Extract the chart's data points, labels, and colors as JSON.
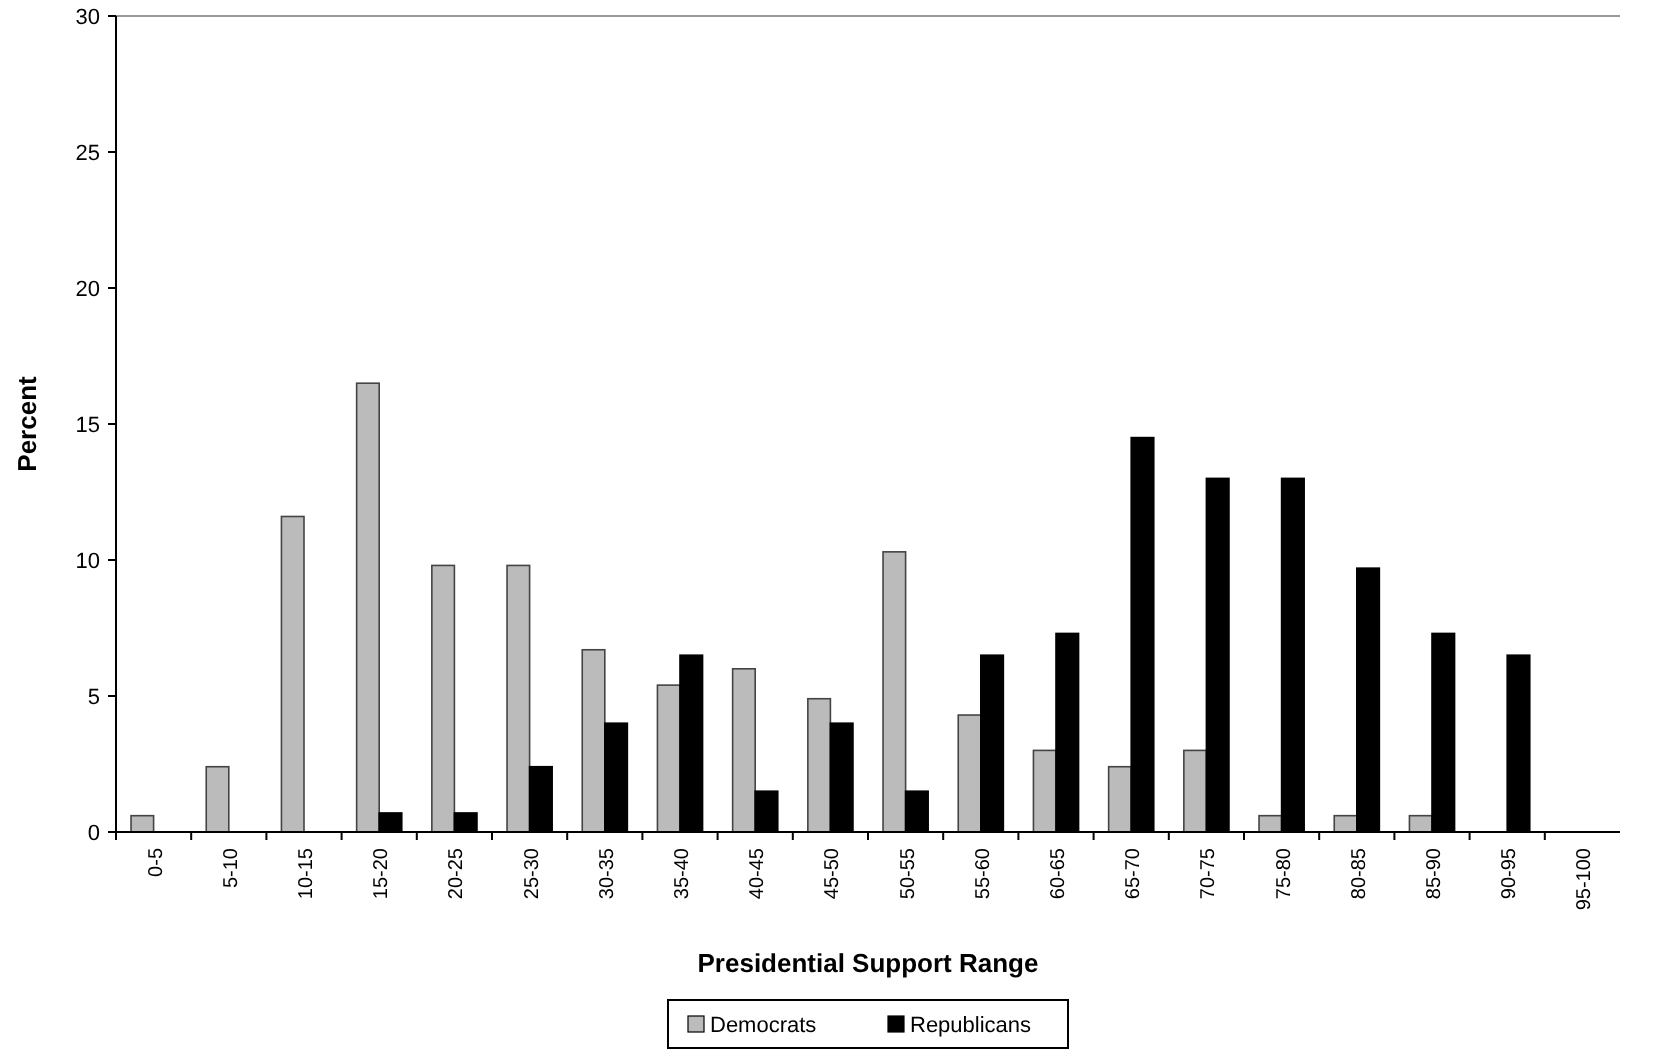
{
  "chart_data": {
    "type": "bar",
    "xlabel": "Presidential Support Range",
    "ylabel": "Percent",
    "categories": [
      "0-5",
      "5-10",
      "10-15",
      "15-20",
      "20-25",
      "25-30",
      "30-35",
      "35-40",
      "40-45",
      "45-50",
      "50-55",
      "55-60",
      "60-65",
      "65-70",
      "70-75",
      "75-80",
      "80-85",
      "85-90",
      "90-95",
      "95-100"
    ],
    "series": [
      {
        "name": "Democrats",
        "color": "#bbbbbb",
        "values": [
          0.6,
          2.4,
          11.6,
          16.5,
          9.8,
          9.8,
          6.7,
          5.4,
          6.0,
          4.9,
          10.3,
          4.3,
          3.0,
          2.4,
          3.0,
          0.6,
          0.6,
          0.6,
          0,
          0
        ]
      },
      {
        "name": "Republicans",
        "color": "#000000",
        "values": [
          0,
          0,
          0,
          0.7,
          0.7,
          2.4,
          4.0,
          6.5,
          1.5,
          4.0,
          1.5,
          6.5,
          7.3,
          14.5,
          13.0,
          13.0,
          9.7,
          7.3,
          6.5,
          0
        ]
      }
    ],
    "ylim": [
      0,
      30
    ],
    "yticks": [
      0,
      5,
      10,
      15,
      20,
      25,
      30
    ],
    "grid": false,
    "legend": "bottom"
  }
}
